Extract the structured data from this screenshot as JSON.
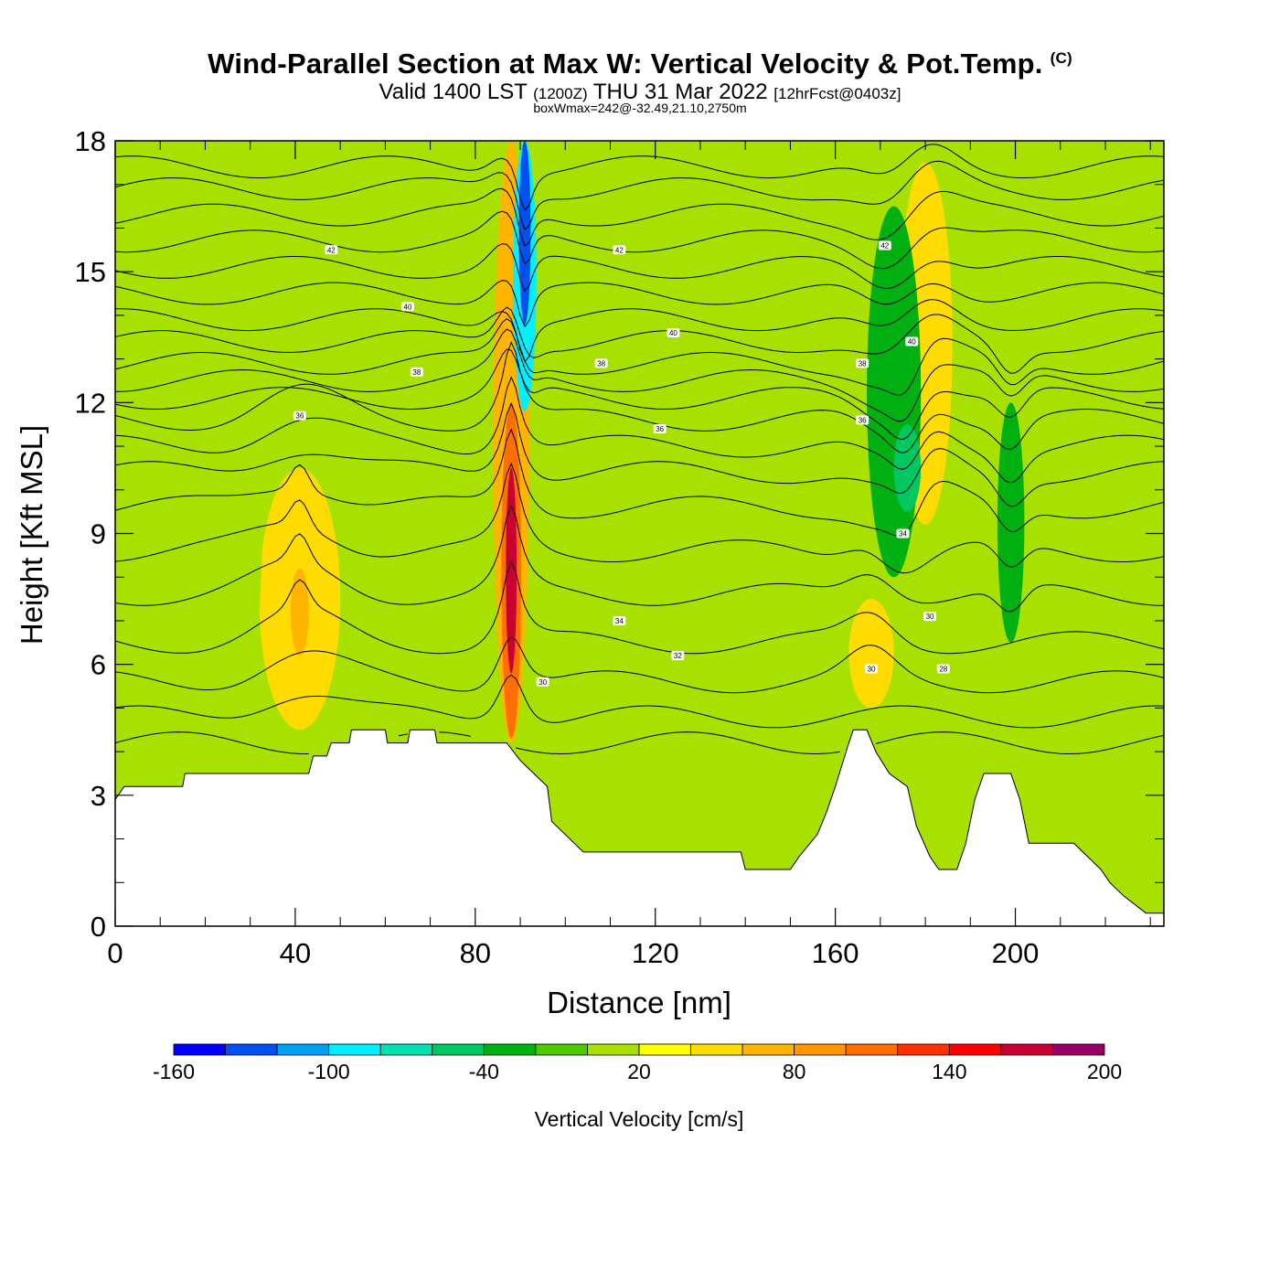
{
  "header": {
    "title": "Wind-Parallel Section at Max W: Vertical Velocity & Pot.Temp.",
    "copyright": "(C)",
    "subtitle_main": "Valid 1400 LST",
    "subtitle_utc": "(1200Z)",
    "subtitle_date": "THU 31 Mar 2022",
    "subtitle_fcst": "[12hrFcst@0403z]",
    "box_wmax": "boxWmax=242@-32.49,21.10,2750m"
  },
  "chart_data": {
    "type": "heatmap",
    "xlabel": "Distance [nm]",
    "ylabel": "Height [Kft MSL]",
    "xlim": [
      0,
      233
    ],
    "ylim": [
      0,
      18
    ],
    "x_ticks": [
      0,
      40,
      80,
      120,
      160,
      200
    ],
    "y_ticks": [
      0,
      3,
      6,
      9,
      12,
      15,
      18
    ],
    "colorbar": {
      "label": "Vertical Velocity [cm/s]",
      "tick_labels": [
        "-160",
        "-100",
        "-40",
        "20",
        "80",
        "140",
        "200"
      ],
      "levels": [
        -160,
        -140,
        -120,
        -100,
        -80,
        -60,
        -40,
        -20,
        0,
        20,
        40,
        60,
        80,
        100,
        120,
        140,
        160,
        180,
        200
      ],
      "colors": [
        "#0000ff",
        "#0050f0",
        "#00a0f0",
        "#00f0ff",
        "#00e0b0",
        "#00c860",
        "#00b010",
        "#50c800",
        "#a8e000",
        "#ffff00",
        "#ffdc00",
        "#ffb400",
        "#ff9600",
        "#ff6e00",
        "#ff3000",
        "#ff0000",
        "#c80032",
        "#960064"
      ]
    },
    "background_w": 10,
    "terrain_kft": [
      [
        0,
        2.9
      ],
      [
        2,
        3.2
      ],
      [
        15,
        3.2
      ],
      [
        15.5,
        3.5
      ],
      [
        43,
        3.5
      ],
      [
        44,
        3.9
      ],
      [
        47,
        3.9
      ],
      [
        48,
        4.2
      ],
      [
        52,
        4.2
      ],
      [
        52.5,
        4.5
      ],
      [
        60,
        4.5
      ],
      [
        60.5,
        4.2
      ],
      [
        65,
        4.2
      ],
      [
        65.5,
        4.5
      ],
      [
        71,
        4.5
      ],
      [
        71.5,
        4.2
      ],
      [
        87,
        4.2
      ],
      [
        90,
        3.8
      ],
      [
        93,
        3.5
      ],
      [
        96,
        3.2
      ],
      [
        97,
        2.4
      ],
      [
        100,
        2.1
      ],
      [
        104,
        1.7
      ],
      [
        114,
        1.7
      ],
      [
        125,
        1.7
      ],
      [
        139,
        1.7
      ],
      [
        140,
        1.3
      ],
      [
        150,
        1.3
      ],
      [
        152,
        1.6
      ],
      [
        156,
        2.1
      ],
      [
        158,
        2.6
      ],
      [
        160,
        3.2
      ],
      [
        163,
        4.2
      ],
      [
        164,
        4.5
      ],
      [
        167,
        4.5
      ],
      [
        169,
        4.0
      ],
      [
        172,
        3.5
      ],
      [
        176,
        3.2
      ],
      [
        178,
        2.3
      ],
      [
        181,
        1.6
      ],
      [
        183,
        1.3
      ],
      [
        187,
        1.3
      ],
      [
        189,
        1.9
      ],
      [
        191,
        2.9
      ],
      [
        193,
        3.5
      ],
      [
        199,
        3.5
      ],
      [
        201,
        2.9
      ],
      [
        203,
        1.9
      ],
      [
        213,
        1.9
      ],
      [
        216,
        1.6
      ],
      [
        219,
        1.3
      ],
      [
        221,
        1.0
      ],
      [
        224,
        0.7
      ],
      [
        229,
        0.3
      ],
      [
        233,
        0.3
      ]
    ],
    "w_features": [
      {
        "x": 88,
        "w": 4,
        "z0": 4.2,
        "z1": 18,
        "value": 60
      },
      {
        "x": 88,
        "w": 2.2,
        "z0": 4.3,
        "z1": 12,
        "value": 100
      },
      {
        "x": 88,
        "w": 1.2,
        "z0": 5.8,
        "z1": 10.5,
        "value": 160
      },
      {
        "x": 91,
        "w": 2.6,
        "z0": 11.8,
        "z1": 18,
        "value": -100
      },
      {
        "x": 91,
        "w": 1.3,
        "z0": 13.8,
        "z1": 18,
        "value": -140
      },
      {
        "x": 41,
        "w": 9,
        "z0": 4.5,
        "z1": 10.5,
        "value": 40
      },
      {
        "x": 41,
        "w": 2,
        "z0": 6.2,
        "z1": 8.2,
        "value": 60
      },
      {
        "x": 180,
        "w": 6,
        "z0": 9.2,
        "z1": 17.5,
        "value": 40
      },
      {
        "x": 168,
        "w": 5,
        "z0": 5.0,
        "z1": 7.5,
        "value": 40
      },
      {
        "x": 173,
        "w": 6,
        "z0": 8,
        "z1": 16.5,
        "value": -40
      },
      {
        "x": 176,
        "w": 3,
        "z0": 9.5,
        "z1": 11.5,
        "value": -60
      },
      {
        "x": 199,
        "w": 3,
        "z0": 6.5,
        "z1": 12,
        "value": -40
      },
      {
        "x": 10,
        "w": 5,
        "z0": 5,
        "z1": 18,
        "value": 0
      },
      {
        "x": 27,
        "w": 6,
        "z0": 4,
        "z1": 18,
        "value": 0
      },
      {
        "x": 63,
        "w": 8,
        "z0": 8,
        "z1": 18,
        "value": 0
      },
      {
        "x": 102,
        "w": 6,
        "z0": 2,
        "z1": 6,
        "value": 0
      },
      {
        "x": 120,
        "w": 7,
        "z0": 8,
        "z1": 16,
        "value": 0
      },
      {
        "x": 145,
        "w": 6,
        "z0": 12,
        "z1": 18,
        "value": 0
      },
      {
        "x": 218,
        "w": 6,
        "z0": 2,
        "z1": 6,
        "value": 0
      }
    ],
    "theta_contours": {
      "levels_shown": [
        "28",
        "30",
        "32",
        "34",
        "36",
        "38",
        "40",
        "42"
      ],
      "base_levels_kft": [
        4.2,
        4.8,
        5.6,
        6.5,
        7.6,
        8.6,
        9.6,
        10.4,
        11.0,
        11.6,
        12.1,
        12.5,
        12.9,
        13.4,
        13.9,
        14.5,
        15.1,
        15.7,
        16.3,
        16.9,
        17.4
      ],
      "labels": [
        {
          "text": "42",
          "x": 48,
          "z": 15.5
        },
        {
          "text": "40",
          "x": 65,
          "z": 14.2
        },
        {
          "text": "38",
          "x": 67,
          "z": 12.7
        },
        {
          "text": "36",
          "x": 41,
          "z": 11.7
        },
        {
          "text": "42",
          "x": 112,
          "z": 15.5
        },
        {
          "text": "40",
          "x": 124,
          "z": 13.6
        },
        {
          "text": "38",
          "x": 108,
          "z": 12.9
        },
        {
          "text": "36",
          "x": 121,
          "z": 11.4
        },
        {
          "text": "34",
          "x": 112,
          "z": 7.0
        },
        {
          "text": "32",
          "x": 125,
          "z": 6.2
        },
        {
          "text": "30",
          "x": 95,
          "z": 5.6
        },
        {
          "text": "42",
          "x": 171,
          "z": 15.6
        },
        {
          "text": "40",
          "x": 177,
          "z": 13.4
        },
        {
          "text": "38",
          "x": 166,
          "z": 12.9
        },
        {
          "text": "36",
          "x": 166,
          "z": 11.6
        },
        {
          "text": "34",
          "x": 175,
          "z": 9.0
        },
        {
          "text": "30",
          "x": 181,
          "z": 7.1
        },
        {
          "text": "28",
          "x": 184,
          "z": 5.9
        },
        {
          "text": "30",
          "x": 168,
          "z": 5.9
        }
      ]
    }
  }
}
